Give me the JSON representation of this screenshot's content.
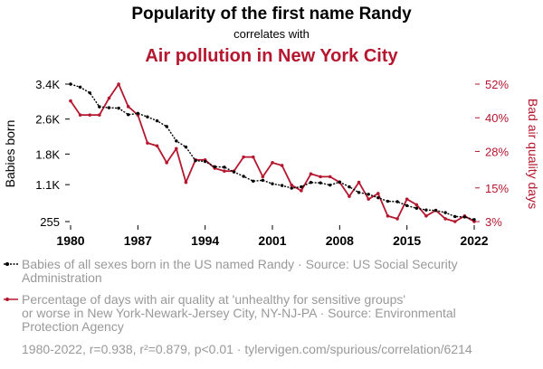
{
  "header": {
    "title": "Popularity of the first name Randy",
    "connector": "correlates with",
    "subtitle": "Air pollution in New York City"
  },
  "colors": {
    "series1": "#000000",
    "series2": "#b5172f",
    "legend_text": "#999999",
    "footer_text": "#999999"
  },
  "chart_data": {
    "type": "line",
    "x": [
      1980,
      1981,
      1982,
      1983,
      1984,
      1985,
      1986,
      1987,
      1988,
      1989,
      1990,
      1991,
      1992,
      1993,
      1994,
      1995,
      1996,
      1997,
      1998,
      1999,
      2000,
      2001,
      2002,
      2003,
      2004,
      2005,
      2006,
      2007,
      2008,
      2009,
      2010,
      2011,
      2012,
      2013,
      2014,
      2015,
      2016,
      2017,
      2018,
      2019,
      2020,
      2021,
      2022
    ],
    "xlim": [
      1980,
      2022
    ],
    "x_ticks": [
      "1980",
      "1987",
      "1994",
      "2001",
      "2008",
      "2015",
      "2022"
    ],
    "ylabel": "Babies born",
    "y2label": "Bad air quality days",
    "ylim": [
      255,
      3400
    ],
    "y_ticks": [
      "3.4K",
      "2.6K",
      "1.8K",
      "1.1K",
      "255"
    ],
    "y_tick_values": [
      3400,
      2600,
      1800,
      1100,
      255
    ],
    "y2lim": [
      3,
      52
    ],
    "y2_ticks": [
      "52%",
      "40%",
      "28%",
      "15%",
      "3%"
    ],
    "y2_tick_values": [
      52,
      40,
      28,
      15,
      3
    ],
    "series": [
      {
        "axis": "left",
        "values": [
          3400,
          3330,
          3200,
          2880,
          2860,
          2850,
          2700,
          2730,
          2650,
          2560,
          2430,
          2100,
          1960,
          1650,
          1630,
          1510,
          1500,
          1390,
          1290,
          1180,
          1200,
          1120,
          1080,
          1020,
          1050,
          1150,
          1140,
          1090,
          1160,
          1050,
          920,
          880,
          800,
          720,
          710,
          620,
          560,
          520,
          510,
          460,
          370,
          360,
          300
        ]
      },
      {
        "axis": "right",
        "values": [
          46,
          41,
          41,
          41,
          47,
          52,
          44,
          41,
          31,
          30,
          24,
          29,
          17,
          25,
          25,
          22,
          21,
          21,
          26,
          26,
          19,
          24,
          23,
          16,
          14,
          20,
          19,
          19,
          17,
          12,
          17,
          11,
          13,
          5,
          4,
          11,
          9,
          5,
          7,
          4,
          3,
          5,
          3
        ]
      }
    ]
  },
  "legend": {
    "items": [
      {
        "lines": [
          "Babies of all sexes born in the US named Randy · Source: US Social Security",
          "Administration"
        ]
      },
      {
        "lines": [
          "Percentage of days with air quality at 'unhealthy for sensitive groups'",
          "or worse in New York-Newark-Jersey City, NY-NJ-PA · Source: Environmental",
          "Protection Agency"
        ]
      }
    ]
  },
  "footer": {
    "text": "1980-2022, r=0.938, r²=0.879, p<0.01 · tylervigen.com/spurious/correlation/6214"
  }
}
